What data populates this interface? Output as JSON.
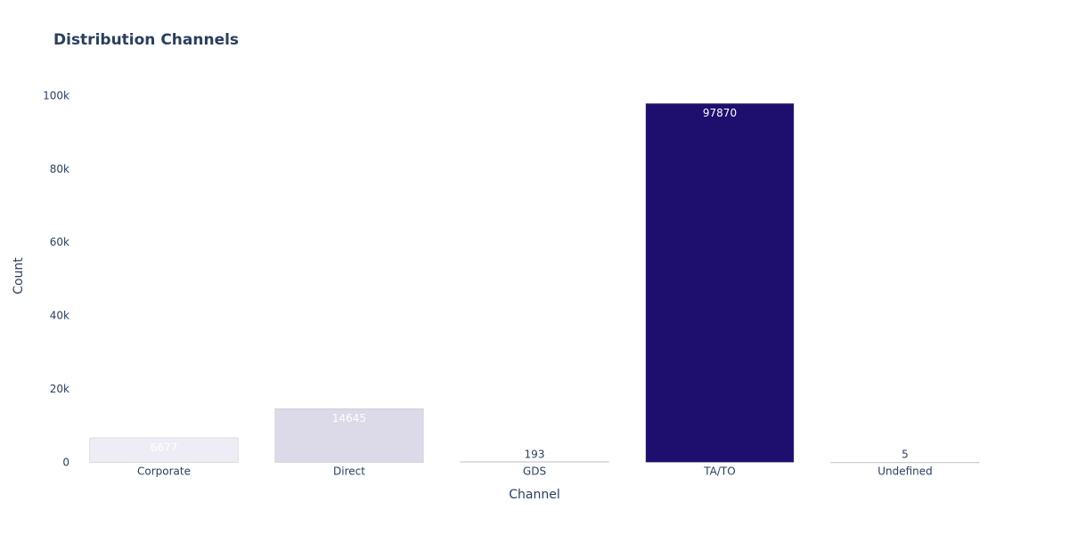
{
  "chart_data": {
    "type": "bar",
    "title": "Distribution Channels",
    "xlabel": "Channel",
    "ylabel": "Count",
    "categories": [
      "Corporate",
      "Direct",
      "GDS",
      "TA/TO",
      "Undefined"
    ],
    "values": [
      6677,
      14645,
      193,
      97870,
      5
    ],
    "ylim": [
      0,
      103000
    ],
    "yticks": [
      0,
      20000,
      40000,
      60000,
      80000,
      100000
    ],
    "ytick_labels": [
      "0",
      "20k",
      "40k",
      "60k",
      "80k",
      "100k"
    ],
    "grid": false,
    "bar_color_scale": [
      "#fdfcfe",
      "#1e0f6e"
    ]
  }
}
